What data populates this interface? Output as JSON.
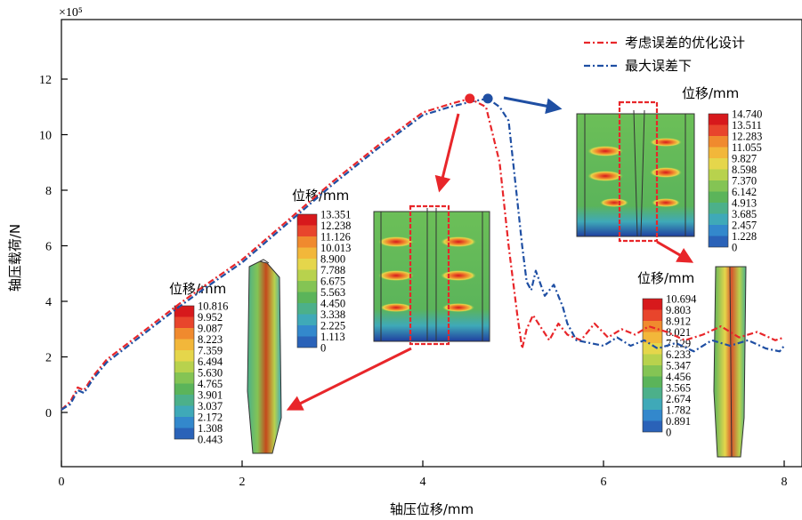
{
  "chart_data": {
    "type": "line",
    "multiplier_label": "×10⁵",
    "xlabel": "轴压位移/mm",
    "ylabel": "轴压载荷/N",
    "xlim": [
      0,
      8
    ],
    "ylim": [
      -2,
      14
    ],
    "xticks": [
      "0",
      "2",
      "4",
      "6",
      "8"
    ],
    "yticks": [
      "0",
      "2",
      "4",
      "6",
      "8",
      "10",
      "12"
    ],
    "legend_position": "top-right",
    "series": [
      {
        "name": "考虑误差的优化设计",
        "color": "#e8262a",
        "x": [
          0,
          0.1,
          0.18,
          0.25,
          0.35,
          0.5,
          0.7,
          0.9,
          1.1,
          1.3,
          1.6,
          2.0,
          2.5,
          3.0,
          3.5,
          4.0,
          4.3,
          4.52,
          4.7,
          4.85,
          4.95,
          5.05,
          5.1,
          5.15,
          5.22,
          5.3,
          5.4,
          5.5,
          5.6,
          5.75,
          5.9,
          6.05,
          6.2,
          6.35,
          6.5,
          6.7,
          6.9,
          7.1,
          7.3,
          7.5,
          7.7,
          7.9,
          8.0
        ],
        "y": [
          0.1,
          0.4,
          0.9,
          0.8,
          1.3,
          1.9,
          2.4,
          2.9,
          3.4,
          3.9,
          4.6,
          5.5,
          6.9,
          8.3,
          9.6,
          10.8,
          11.1,
          11.3,
          11.0,
          9.0,
          6.0,
          3.4,
          2.3,
          3.0,
          3.5,
          3.1,
          2.6,
          3.2,
          2.8,
          2.6,
          3.2,
          2.7,
          3.0,
          2.8,
          3.1,
          2.9,
          2.6,
          2.8,
          3.1,
          2.7,
          2.9,
          2.6,
          2.7
        ]
      },
      {
        "name": "最大误差下",
        "color": "#1f4fa3",
        "x": [
          0,
          0.1,
          0.18,
          0.25,
          0.35,
          0.5,
          0.7,
          0.9,
          1.1,
          1.3,
          1.6,
          2.0,
          2.5,
          3.0,
          3.5,
          4.0,
          4.3,
          4.55,
          4.72,
          4.85,
          4.95,
          5.0,
          5.05,
          5.1,
          5.15,
          5.2,
          5.25,
          5.35,
          5.45,
          5.55,
          5.6,
          5.7,
          5.85,
          6.0,
          6.15,
          6.3,
          6.45,
          6.6,
          6.8,
          7.0,
          7.2,
          7.4,
          7.6,
          7.8,
          7.95,
          8.0
        ],
        "y": [
          0.1,
          0.3,
          0.8,
          0.7,
          1.2,
          1.8,
          2.3,
          2.8,
          3.3,
          3.8,
          4.5,
          5.4,
          6.8,
          8.2,
          9.5,
          10.7,
          11.0,
          11.2,
          11.3,
          11.0,
          10.5,
          9.0,
          7.5,
          6.0,
          4.7,
          4.4,
          5.1,
          4.2,
          4.6,
          3.8,
          3.2,
          2.6,
          2.5,
          2.4,
          2.7,
          2.4,
          2.6,
          2.3,
          2.5,
          2.2,
          2.6,
          2.4,
          2.6,
          2.3,
          2.2,
          2.4
        ]
      }
    ],
    "markers": [
      {
        "x": 4.52,
        "y": 11.3,
        "color": "#e8262a"
      },
      {
        "x": 4.72,
        "y": 11.3,
        "color": "#1f4fa3"
      }
    ],
    "colorbars": [
      {
        "title": "位移/mm",
        "values": [
          "10.816",
          "9.952",
          "9.087",
          "8.223",
          "7.359",
          "6.494",
          "5.630",
          "4.765",
          "3.901",
          "3.037",
          "2.172",
          "1.308",
          "0.443"
        ]
      },
      {
        "title": "位移/mm",
        "values": [
          "13.351",
          "12.238",
          "11.126",
          "10.013",
          "8.900",
          "7.788",
          "6.675",
          "5.563",
          "4.450",
          "3.338",
          "2.225",
          "1.113",
          "0"
        ]
      },
      {
        "title": "位移/mm",
        "values": [
          "14.740",
          "13.511",
          "12.283",
          "11.055",
          "9.827",
          "8.598",
          "7.370",
          "6.142",
          "4.913",
          "3.685",
          "2.457",
          "1.228",
          "0"
        ]
      },
      {
        "title": "位移/mm",
        "values": [
          "10.694",
          "9.803",
          "8.912",
          "8.021",
          "7.129",
          "6.233",
          "5.347",
          "4.456",
          "3.565",
          "2.674",
          "1.782",
          "0.891",
          "0"
        ]
      }
    ],
    "colormap": [
      "#d7191c",
      "#e8452c",
      "#f08a2e",
      "#f2b73a",
      "#e5d64b",
      "#b8d24d",
      "#84c454",
      "#5bb45a",
      "#4cb08a",
      "#3fa9b8",
      "#3388cc",
      "#2a62b8",
      "#1f3fa0"
    ]
  }
}
